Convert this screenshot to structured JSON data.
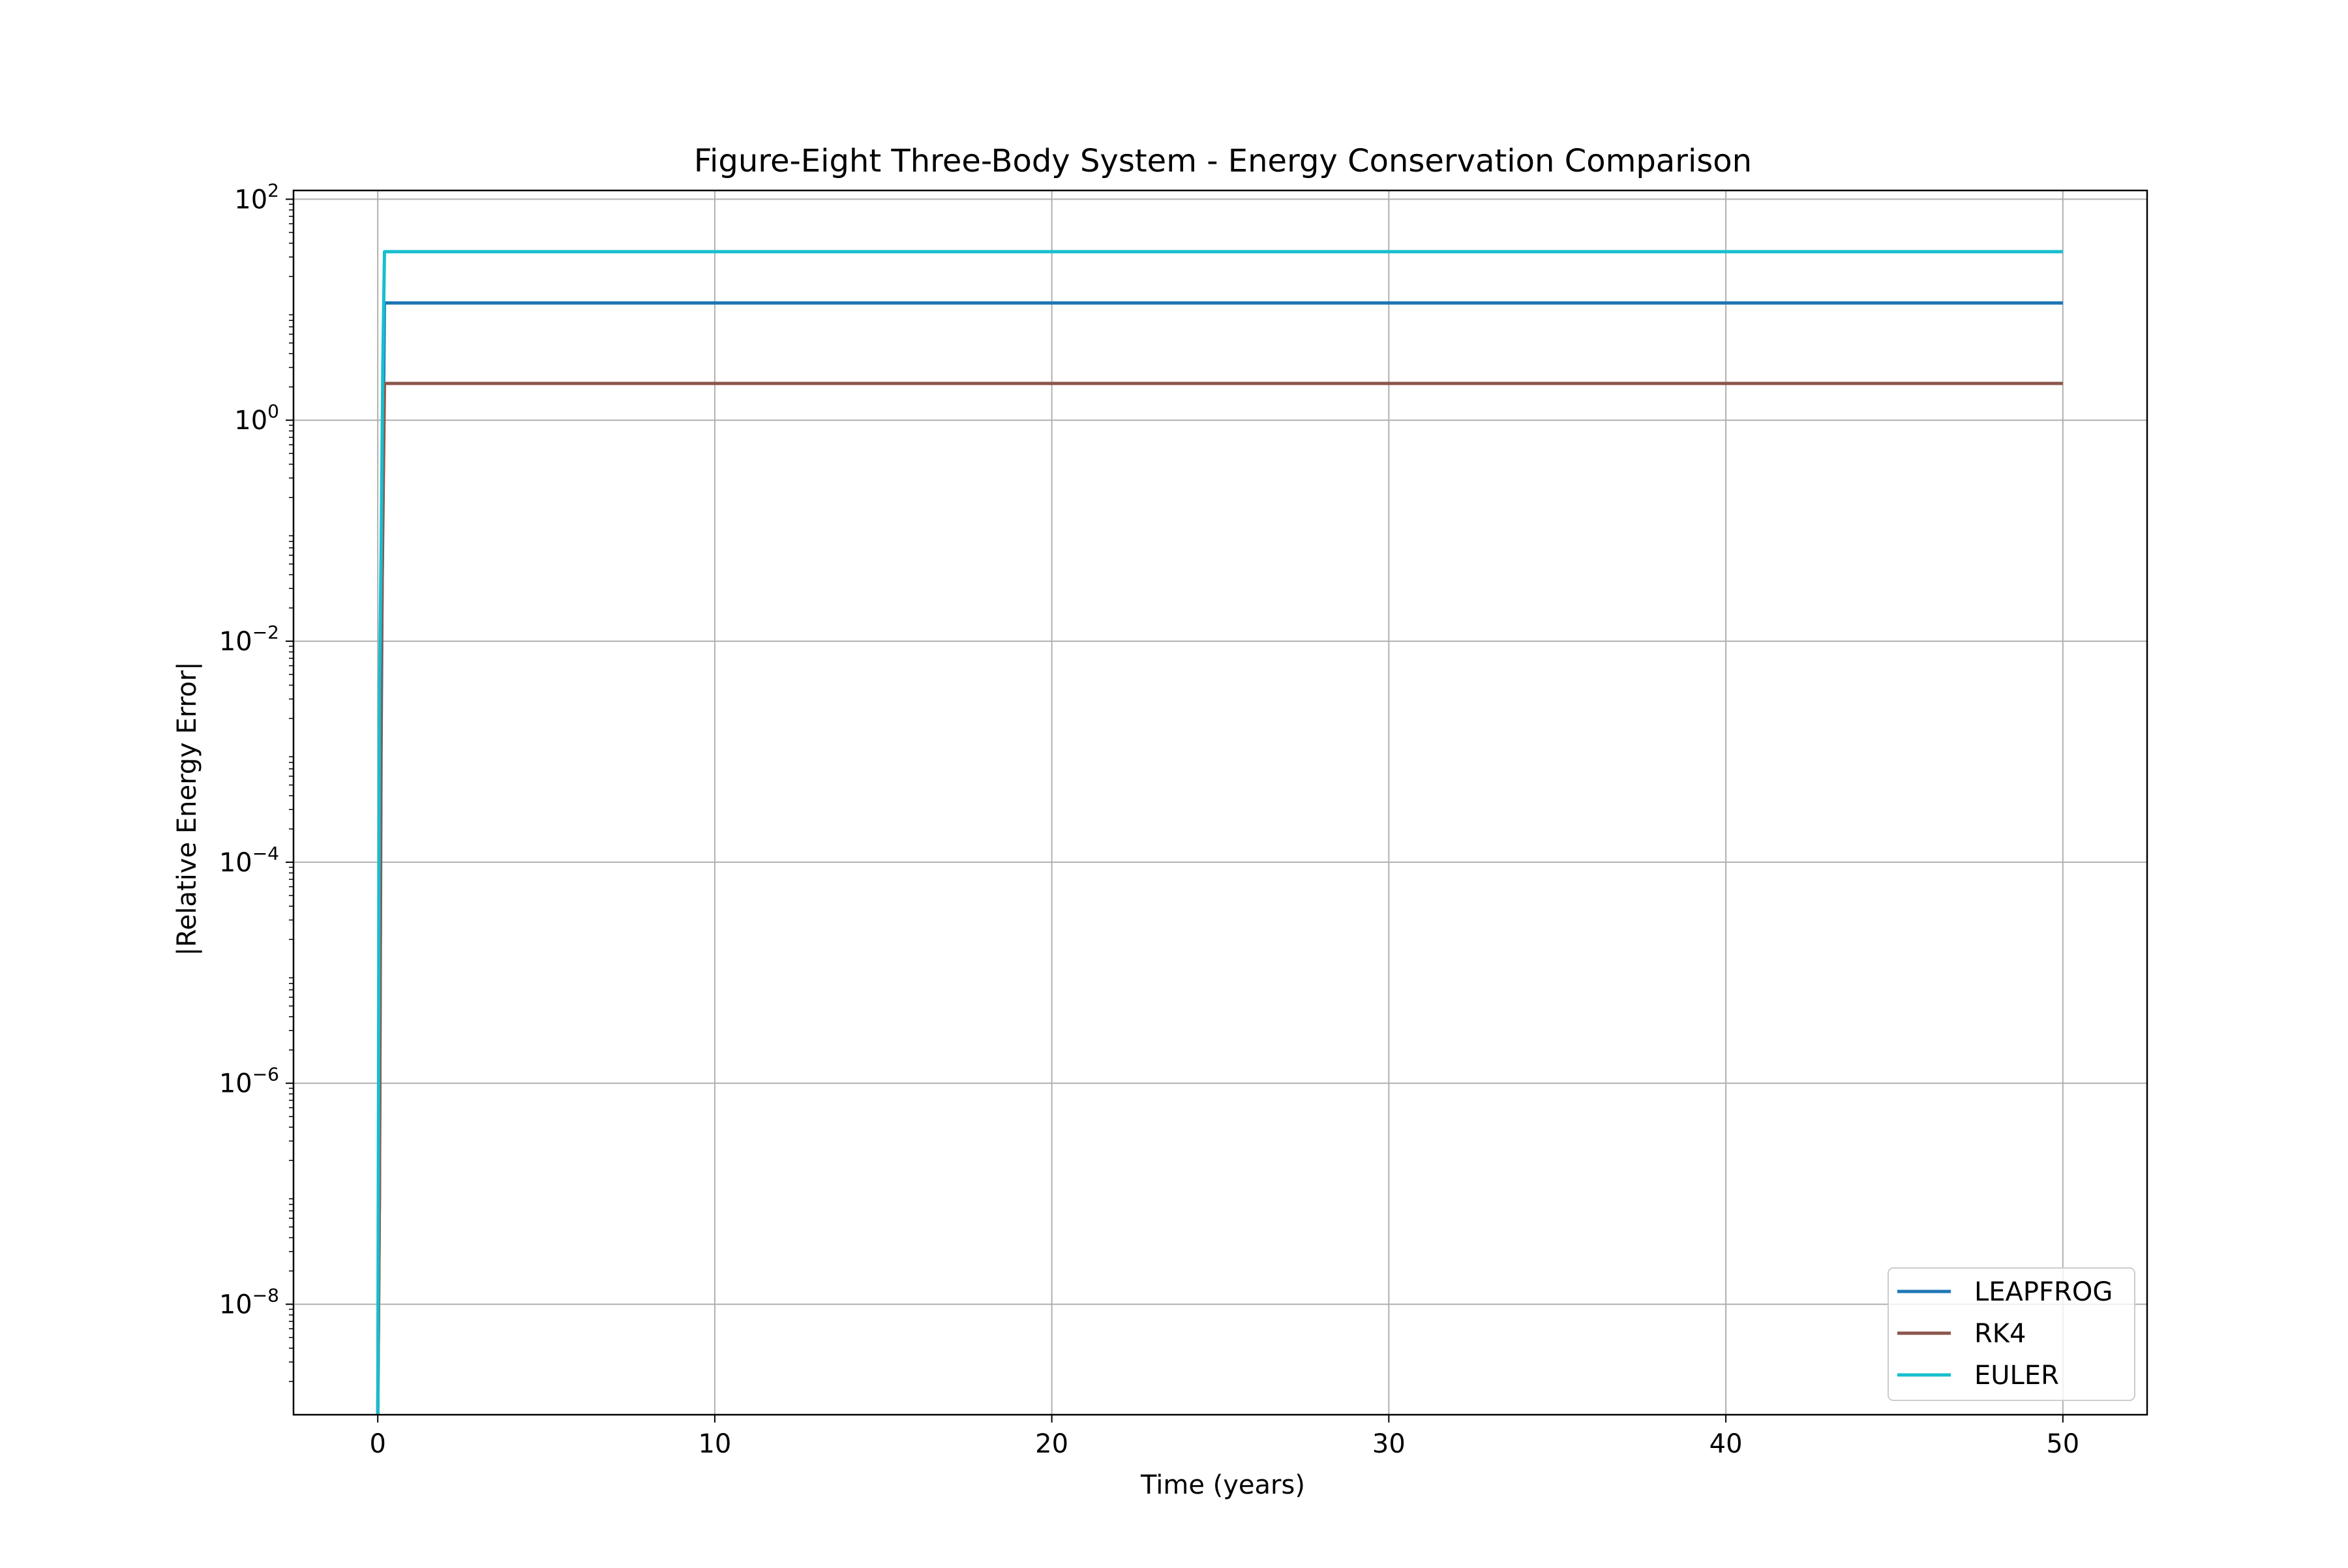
{
  "chart_data": {
    "type": "line",
    "title": "Figure-Eight Three-Body System - Energy Conservation Comparison",
    "xlabel": "Time (years)",
    "ylabel": "|Relative Energy Error|",
    "xlim": [
      -2.5,
      52.5
    ],
    "ylim": [
      1e-09,
      120
    ],
    "yscale": "log",
    "grid": true,
    "legend_position": "lower right",
    "x_ticks": [
      0,
      10,
      20,
      30,
      40,
      50
    ],
    "x_tick_labels": [
      "0",
      "10",
      "20",
      "30",
      "40",
      "50"
    ],
    "y_ticks": [
      {
        "value": 100,
        "base": "10",
        "exp": "2"
      },
      {
        "value": 1,
        "base": "10",
        "exp": "0"
      },
      {
        "value": 0.01,
        "base": "10",
        "exp": "−2"
      },
      {
        "value": 0.0001,
        "base": "10",
        "exp": "−4"
      },
      {
        "value": 1e-06,
        "base": "10",
        "exp": "−6"
      },
      {
        "value": 1e-08,
        "base": "10",
        "exp": "−8"
      }
    ],
    "series": [
      {
        "name": "LEAPFROG",
        "color": "#1f77b4",
        "x": [
          0,
          0.05,
          0.1,
          0.15,
          0.2,
          50
        ],
        "y": [
          1e-09,
          1e-07,
          0.001,
          0.3,
          11.5,
          11.5
        ]
      },
      {
        "name": "RK4",
        "color": "#8c564b",
        "x": [
          0,
          0.05,
          0.1,
          0.15,
          0.2,
          50
        ],
        "y": [
          1e-09,
          1e-07,
          0.0045,
          0.1,
          2.15,
          2.15
        ]
      },
      {
        "name": "EULER",
        "color": "#17becf",
        "x": [
          0,
          0.05,
          0.1,
          0.15,
          0.2,
          50
        ],
        "y": [
          1e-09,
          0.0035,
          0.06,
          3.0,
          33.5,
          33.5
        ]
      }
    ]
  }
}
